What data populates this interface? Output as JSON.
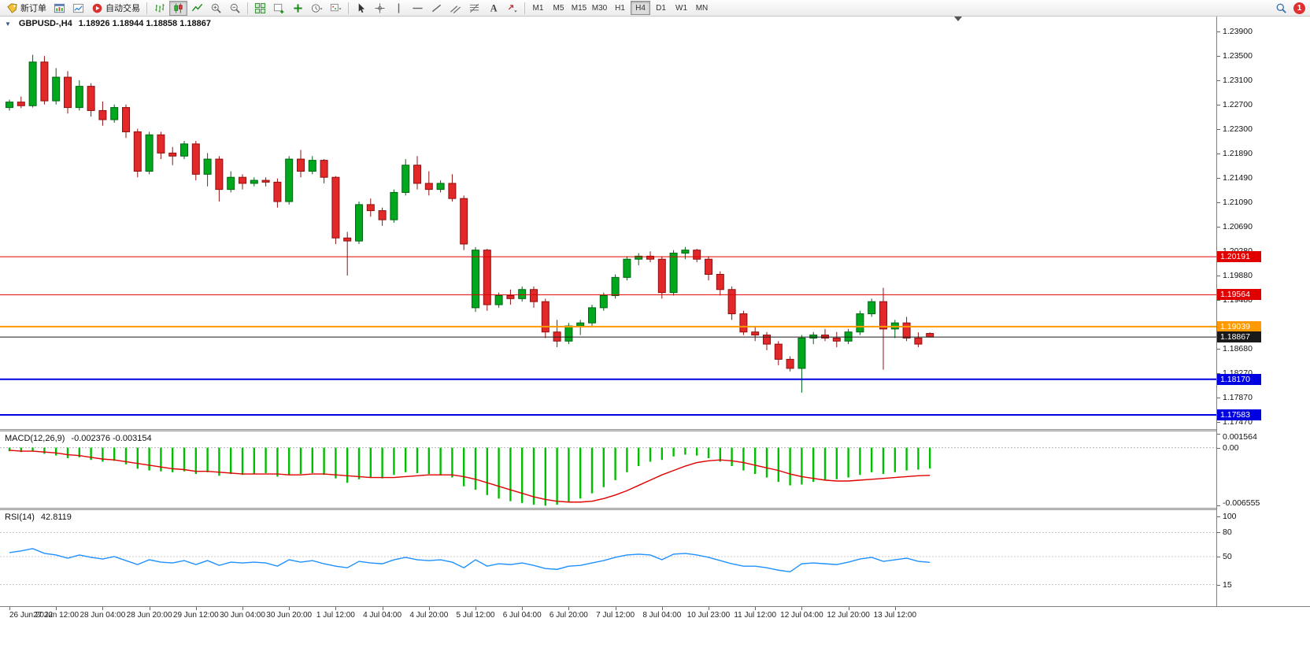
{
  "toolbar": {
    "new_order": "新订单",
    "auto_trading": "自动交易",
    "left_icons_a": [
      "charts-window",
      "market-watch"
    ],
    "chart_icons": [
      "bar-chart",
      "candlestick",
      "line-chart",
      "zoom-in",
      "zoom-out"
    ],
    "active_chart_icon": "candlestick",
    "window_icons": [
      "tile-windows",
      "new-chart",
      "indicators",
      "periods",
      "templates"
    ],
    "line_study_icons": [
      "cursor",
      "crosshair",
      "vertical-line",
      "horizontal-line",
      "trendline",
      "channel",
      "fibonacci",
      "text-label",
      "arrows"
    ],
    "timeframes": [
      "M1",
      "M5",
      "M15",
      "M30",
      "H1",
      "H4",
      "D1",
      "W1",
      "MN"
    ],
    "active_timeframe": "H4",
    "badge_count": "1"
  },
  "chart_data": {
    "type": "candlestick",
    "symbol_period": "GBPUSD-,H4",
    "ohlc_text": "1.18926 1.18944 1.18858 1.18867",
    "bull_color": "#00a81e",
    "bull_border": "#006414",
    "bear_color": "#e22828",
    "bear_border": "#8f1010",
    "price_axis": {
      "min": 1.1735,
      "max": 1.2415,
      "ticks": [
        "1.23900",
        "1.23500",
        "1.23100",
        "1.22700",
        "1.22300",
        "1.21890",
        "1.21490",
        "1.21090",
        "1.20690",
        "1.20280",
        "1.19880",
        "1.19480",
        "1.19080",
        "1.18680",
        "1.18270",
        "1.17870",
        "1.17470"
      ]
    },
    "horizontal_lines": [
      {
        "price": 1.20191,
        "label": "1.20191",
        "color": "#e00000",
        "width": 1
      },
      {
        "price": 1.19564,
        "label": "1.19564",
        "color": "#e00000",
        "width": 1
      },
      {
        "price": 1.19039,
        "label": "1.19039",
        "color": "#ff9900",
        "width": 2
      },
      {
        "price": 1.18867,
        "label": "1.18867",
        "color": "#1a1a1a",
        "width": 1
      },
      {
        "price": 1.1817,
        "label": "1.18170",
        "color": "#0000e0",
        "width": 2
      },
      {
        "price": 1.17583,
        "label": "1.17583",
        "color": "#0000e0",
        "width": 2
      }
    ],
    "x_labels": [
      [
        0,
        "26 Jun 2022"
      ],
      [
        4,
        "27 Jun 12:00"
      ],
      [
        8,
        "28 Jun 04:00"
      ],
      [
        12,
        "28 Jun 20:00"
      ],
      [
        16,
        "29 Jun 12:00"
      ],
      [
        20,
        "30 Jun 04:00"
      ],
      [
        24,
        "30 Jun 20:00"
      ],
      [
        28,
        "1 Jul 12:00"
      ],
      [
        32,
        "4 Jul 04:00"
      ],
      [
        36,
        "4 Jul 20:00"
      ],
      [
        40,
        "5 Jul 12:00"
      ],
      [
        44,
        "6 Jul 04:00"
      ],
      [
        48,
        "6 Jul 20:00"
      ],
      [
        52,
        "7 Jul 12:00"
      ],
      [
        56,
        "8 Jul 04:00"
      ],
      [
        60,
        "10 Jul 23:00"
      ],
      [
        64,
        "11 Jul 12:00"
      ],
      [
        68,
        "12 Jul 04:00"
      ],
      [
        72,
        "12 Jul 20:00"
      ],
      [
        76,
        "13 Jul 12:00"
      ]
    ],
    "candles": [
      [
        1.2265,
        1.2278,
        1.226,
        1.2274
      ],
      [
        1.2274,
        1.2283,
        1.2264,
        1.2268
      ],
      [
        1.2268,
        1.2352,
        1.2265,
        1.234
      ],
      [
        1.234,
        1.235,
        1.227,
        1.2276
      ],
      [
        1.2276,
        1.233,
        1.227,
        1.2315
      ],
      [
        1.2315,
        1.2325,
        1.2255,
        1.2265
      ],
      [
        1.2265,
        1.231,
        1.226,
        1.23
      ],
      [
        1.23,
        1.2305,
        1.225,
        1.226
      ],
      [
        1.226,
        1.2275,
        1.2235,
        1.2245
      ],
      [
        1.2245,
        1.227,
        1.224,
        1.2265
      ],
      [
        1.2265,
        1.227,
        1.2215,
        1.2225
      ],
      [
        1.2225,
        1.223,
        1.215,
        1.216
      ],
      [
        1.216,
        1.2225,
        1.2155,
        1.222
      ],
      [
        1.222,
        1.2225,
        1.218,
        1.219
      ],
      [
        1.219,
        1.22,
        1.217,
        1.2185
      ],
      [
        1.2185,
        1.221,
        1.218,
        1.2205
      ],
      [
        1.2205,
        1.221,
        1.2145,
        1.2155
      ],
      [
        1.2155,
        1.219,
        1.2135,
        1.218
      ],
      [
        1.218,
        1.2185,
        1.211,
        1.213
      ],
      [
        1.213,
        1.216,
        1.2125,
        1.215
      ],
      [
        1.215,
        1.2155,
        1.213,
        1.214
      ],
      [
        1.214,
        1.215,
        1.2135,
        1.2145
      ],
      [
        1.2145,
        1.215,
        1.2135,
        1.2142
      ],
      [
        1.2142,
        1.2148,
        1.21,
        1.211
      ],
      [
        1.211,
        1.2185,
        1.2105,
        1.218
      ],
      [
        1.218,
        1.2195,
        1.215,
        1.216
      ],
      [
        1.216,
        1.2185,
        1.2155,
        1.2178
      ],
      [
        1.2178,
        1.218,
        1.214,
        1.215
      ],
      [
        1.215,
        1.2152,
        1.204,
        1.205
      ],
      [
        1.205,
        1.206,
        1.1988,
        1.2045
      ],
      [
        1.2045,
        1.211,
        1.204,
        1.2105
      ],
      [
        1.2105,
        1.2115,
        1.2085,
        1.2095
      ],
      [
        1.2095,
        1.21,
        1.207,
        1.208
      ],
      [
        1.208,
        1.213,
        1.2075,
        1.2125
      ],
      [
        1.2125,
        1.218,
        1.212,
        1.217
      ],
      [
        1.217,
        1.2185,
        1.213,
        1.214
      ],
      [
        1.214,
        1.216,
        1.212,
        1.213
      ],
      [
        1.213,
        1.2145,
        1.2125,
        1.214
      ],
      [
        1.214,
        1.2155,
        1.211,
        1.2115
      ],
      [
        1.2115,
        1.212,
        1.203,
        1.204
      ],
      [
        1.1935,
        1.2035,
        1.1928,
        1.203
      ],
      [
        1.203,
        1.2032,
        1.193,
        1.194
      ],
      [
        1.194,
        1.196,
        1.1935,
        1.1955
      ],
      [
        1.1955,
        1.1965,
        1.194,
        1.195
      ],
      [
        1.195,
        1.197,
        1.1945,
        1.1965
      ],
      [
        1.1965,
        1.197,
        1.1935,
        1.1945
      ],
      [
        1.1945,
        1.195,
        1.1885,
        1.1895
      ],
      [
        1.1895,
        1.1915,
        1.187,
        1.188
      ],
      [
        1.188,
        1.191,
        1.1875,
        1.1905
      ],
      [
        1.1905,
        1.1915,
        1.189,
        1.191
      ],
      [
        1.191,
        1.194,
        1.1905,
        1.1935
      ],
      [
        1.1935,
        1.196,
        1.193,
        1.1955
      ],
      [
        1.1955,
        1.199,
        1.195,
        1.1985
      ],
      [
        1.1985,
        1.202,
        1.198,
        1.2015
      ],
      [
        1.2015,
        1.2025,
        1.2005,
        1.202
      ],
      [
        1.202,
        1.2028,
        1.201,
        1.2015
      ],
      [
        1.2015,
        1.202,
        1.195,
        1.196
      ],
      [
        1.196,
        1.203,
        1.1955,
        1.2025
      ],
      [
        1.2025,
        1.2035,
        1.2015,
        1.203
      ],
      [
        1.203,
        1.2032,
        1.201,
        1.2015
      ],
      [
        1.2015,
        1.202,
        1.198,
        1.199
      ],
      [
        1.199,
        1.1995,
        1.1955,
        1.1965
      ],
      [
        1.1965,
        1.197,
        1.1915,
        1.1925
      ],
      [
        1.1925,
        1.193,
        1.189,
        1.1895
      ],
      [
        1.1895,
        1.1905,
        1.188,
        1.189
      ],
      [
        1.189,
        1.1895,
        1.1865,
        1.1875
      ],
      [
        1.1875,
        1.188,
        1.184,
        1.185
      ],
      [
        1.185,
        1.1855,
        1.183,
        1.1835
      ],
      [
        1.1835,
        1.189,
        1.1795,
        1.1885
      ],
      [
        1.1885,
        1.1895,
        1.1875,
        1.189
      ],
      [
        1.189,
        1.19,
        1.188,
        1.1885
      ],
      [
        1.1885,
        1.1895,
        1.187,
        1.188
      ],
      [
        1.188,
        1.19,
        1.1875,
        1.1895
      ],
      [
        1.1895,
        1.193,
        1.189,
        1.1925
      ],
      [
        1.1925,
        1.195,
        1.192,
        1.1945
      ],
      [
        1.1945,
        1.1968,
        1.1833,
        1.19
      ],
      [
        1.19,
        1.1915,
        1.1885,
        1.191
      ],
      [
        1.191,
        1.192,
        1.188,
        1.1885
      ],
      [
        1.1885,
        1.18944,
        1.187,
        1.1875
      ],
      [
        1.18926,
        1.18944,
        1.18858,
        1.18867
      ]
    ],
    "indicators": [
      {
        "type": "macd",
        "label": "MACD(12,26,9)",
        "values_text": "-0.002376 -0.003154",
        "range": [
          -0.00685,
          0.00185
        ],
        "axis_labels": [
          [
            "0.001564",
            0.001564
          ],
          [
            "0.00",
            0
          ],
          [
            "-0.006555",
            -0.006555
          ]
        ],
        "histogram_color": "#00be00",
        "signal_color": "#e00000",
        "histogram": [
          -0.0004,
          -0.0005,
          -0.0004,
          -0.0007,
          -0.0009,
          -0.0012,
          -0.0011,
          -0.0014,
          -0.0016,
          -0.0015,
          -0.0019,
          -0.0024,
          -0.0026,
          -0.0027,
          -0.0028,
          -0.0027,
          -0.003,
          -0.0028,
          -0.0032,
          -0.003,
          -0.0031,
          -0.003,
          -0.0029,
          -0.0033,
          -0.0031,
          -0.003,
          -0.0029,
          -0.0031,
          -0.0035,
          -0.004,
          -0.0036,
          -0.0034,
          -0.0035,
          -0.0031,
          -0.0028,
          -0.0029,
          -0.003,
          -0.0031,
          -0.0034,
          -0.0044,
          -0.0048,
          -0.0054,
          -0.0058,
          -0.0061,
          -0.0063,
          -0.0065,
          -0.0066,
          -0.0065,
          -0.0062,
          -0.0058,
          -0.0052,
          -0.0045,
          -0.0037,
          -0.0028,
          -0.0021,
          -0.0016,
          -0.0014,
          -0.001,
          -0.0008,
          -0.0009,
          -0.0012,
          -0.0016,
          -0.0021,
          -0.0026,
          -0.003,
          -0.0034,
          -0.0039,
          -0.0043,
          -0.0042,
          -0.0039,
          -0.0037,
          -0.0036,
          -0.0034,
          -0.0031,
          -0.0028,
          -0.003,
          -0.0028,
          -0.0026,
          -0.0025,
          -0.002376
        ],
        "signal": [
          -0.0003,
          -0.0004,
          -0.0004,
          -0.0005,
          -0.0006,
          -0.0008,
          -0.0009,
          -0.0011,
          -0.0013,
          -0.0014,
          -0.0016,
          -0.0018,
          -0.002,
          -0.0022,
          -0.0024,
          -0.0025,
          -0.0027,
          -0.0027,
          -0.0028,
          -0.0029,
          -0.003,
          -0.003,
          -0.003,
          -0.003,
          -0.0031,
          -0.0031,
          -0.003,
          -0.003,
          -0.0031,
          -0.0032,
          -0.0033,
          -0.0034,
          -0.0034,
          -0.0034,
          -0.0033,
          -0.0032,
          -0.0031,
          -0.0031,
          -0.0031,
          -0.0033,
          -0.0036,
          -0.004,
          -0.0044,
          -0.0048,
          -0.0052,
          -0.0056,
          -0.0059,
          -0.0061,
          -0.0062,
          -0.0062,
          -0.0061,
          -0.0058,
          -0.0054,
          -0.0049,
          -0.0043,
          -0.0037,
          -0.0031,
          -0.0026,
          -0.0021,
          -0.0017,
          -0.0015,
          -0.0014,
          -0.0015,
          -0.0017,
          -0.002,
          -0.0023,
          -0.0026,
          -0.003,
          -0.0033,
          -0.0035,
          -0.0037,
          -0.0038,
          -0.0038,
          -0.0037,
          -0.0036,
          -0.0035,
          -0.0034,
          -0.0033,
          -0.0032,
          -0.003154
        ]
      },
      {
        "type": "rsi",
        "label": "RSI(14)",
        "values_text": "42.8119",
        "range": [
          -12,
          108
        ],
        "line_color": "#1e90ff",
        "levels": [
          [
            100,
            false
          ],
          [
            80,
            true
          ],
          [
            50,
            true
          ],
          [
            15,
            true
          ]
        ],
        "values": [
          55,
          57,
          60,
          54,
          52,
          48,
          52,
          49,
          47,
          50,
          45,
          40,
          46,
          43,
          42,
          45,
          40,
          45,
          39,
          43,
          42,
          43,
          42,
          38,
          46,
          43,
          45,
          41,
          38,
          36,
          44,
          42,
          41,
          46,
          49,
          46,
          45,
          46,
          43,
          36,
          46,
          38,
          41,
          40,
          42,
          39,
          35,
          34,
          38,
          39,
          42,
          45,
          49,
          52,
          53,
          52,
          46,
          53,
          54,
          52,
          49,
          45,
          41,
          38,
          38,
          36,
          33,
          31,
          41,
          42,
          41,
          40,
          43,
          47,
          49,
          44,
          46,
          48,
          44,
          42.8
        ]
      }
    ]
  }
}
